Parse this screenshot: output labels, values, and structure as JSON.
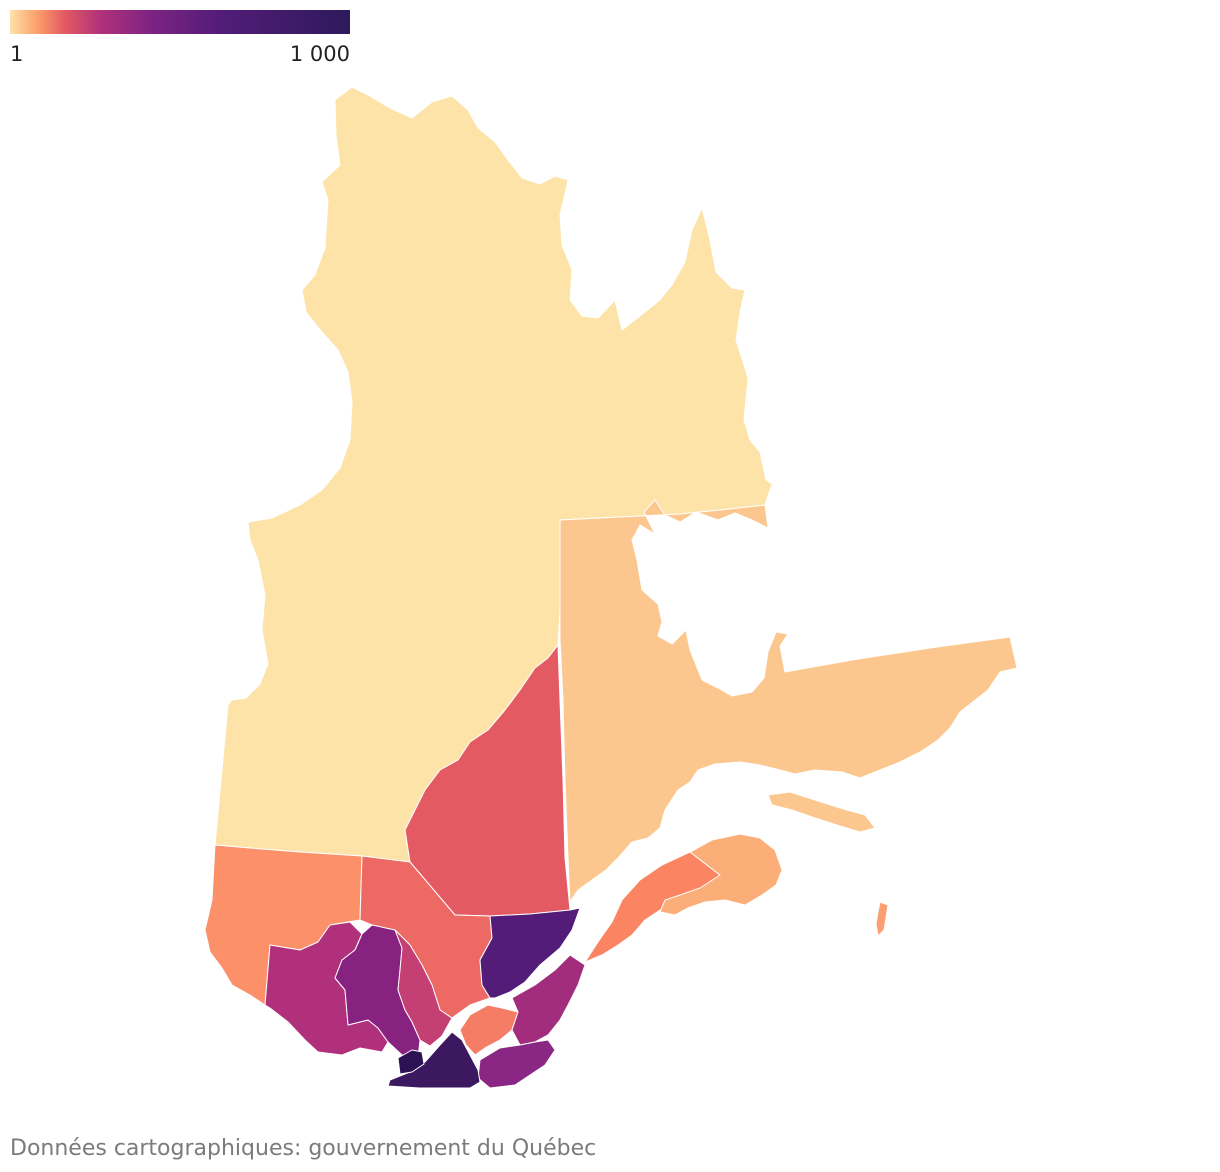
{
  "legend": {
    "min_label": "1",
    "max_label": "1 000",
    "color_low": "#fde3a7",
    "color_high": "#2e1a5c",
    "scale": "log"
  },
  "regions": [
    {
      "id": "nord-du-quebec",
      "color": "#fde3a7"
    },
    {
      "id": "cote-nord",
      "color": "#fcc78e"
    },
    {
      "id": "saguenay-lac-saint-jean",
      "color": "#e35a62"
    },
    {
      "id": "abitibi-temiscamingue",
      "color": "#fb9069"
    },
    {
      "id": "mauricie",
      "color": "#ed6a64"
    },
    {
      "id": "outaouais",
      "color": "#b0307b"
    },
    {
      "id": "laurentides",
      "color": "#882281"
    },
    {
      "id": "lanaudiere",
      "color": "#c33f74"
    },
    {
      "id": "capitale-nationale",
      "color": "#521c78"
    },
    {
      "id": "centre-du-quebec",
      "color": "#f57d66"
    },
    {
      "id": "chaudiere-appalaches",
      "color": "#a32d7d"
    },
    {
      "id": "estrie",
      "color": "#8a2683"
    },
    {
      "id": "monteregie",
      "color": "#3c1860"
    },
    {
      "id": "laval",
      "color": "#2c1253"
    },
    {
      "id": "bas-saint-laurent",
      "color": "#fb8463"
    },
    {
      "id": "gaspesie-iles-de-la-madeleine",
      "color": "#fcae79"
    },
    {
      "id": "anticosti",
      "color": "#fcc78e"
    },
    {
      "id": "iles-de-la-madeleine",
      "color": "#fb9e70"
    }
  ],
  "source": "Données cartographiques: gouvernement du Québec"
}
